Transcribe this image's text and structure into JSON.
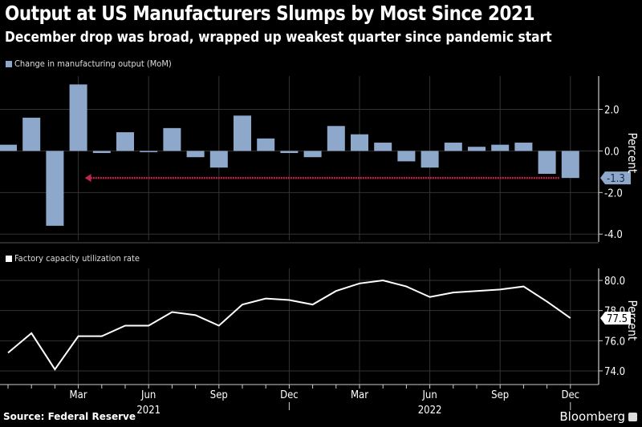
{
  "header": {
    "title": "Output at US Manufacturers Slumps by Most Since 2021",
    "subtitle": "December drop was broad, wrapped up weakest quarter since pandemic start"
  },
  "footer": {
    "source": "Source: Federal Reserve",
    "brand": "Bloomberg"
  },
  "colors": {
    "background": "#000000",
    "bar": "#8ea8cc",
    "line": "#ffffff",
    "arrow": "#c0264a",
    "grid": "#333333"
  },
  "chart_data": [
    {
      "type": "bar",
      "legend": "Change in manufacturing output (MoM)",
      "ylabel": "Percent",
      "ylim": [
        -4.3,
        3.6
      ],
      "yticks": [
        -4.0,
        -2.0,
        0.0,
        2.0
      ],
      "ytick_labels": [
        "-4.0",
        "-2.0",
        "0.0",
        "2.0"
      ],
      "grid": true,
      "categories": [
        "Dec 2020",
        "Jan 2021",
        "Feb 2021",
        "Mar 2021",
        "Apr 2021",
        "May 2021",
        "Jun 2021",
        "Jul 2021",
        "Aug 2021",
        "Sep 2021",
        "Oct 2021",
        "Nov 2021",
        "Dec 2021",
        "Jan 2022",
        "Feb 2022",
        "Mar 2022",
        "Apr 2022",
        "May 2022",
        "Jun 2022",
        "Jul 2022",
        "Aug 2022",
        "Sep 2022",
        "Oct 2022",
        "Nov 2022",
        "Dec 2022"
      ],
      "values": [
        0.3,
        1.6,
        -3.6,
        3.2,
        -0.1,
        0.9,
        -0.05,
        1.1,
        -0.3,
        -0.8,
        1.7,
        0.6,
        -0.1,
        -0.3,
        1.2,
        0.8,
        0.4,
        -0.5,
        -0.8,
        0.4,
        0.2,
        0.3,
        0.4,
        -1.1,
        -1.3
      ],
      "last_value_label": "-1.3",
      "annotation": {
        "type": "arrow",
        "from": "Dec 2022",
        "to": "Mar 2021",
        "level": -1.3
      }
    },
    {
      "type": "line",
      "legend": "Factory capacity utilization rate",
      "ylabel": "Percent",
      "ylim": [
        73.2,
        80.8
      ],
      "yticks": [
        74.0,
        76.0,
        78.0,
        80.0
      ],
      "ytick_labels": [
        "74.0",
        "76.0",
        "78.0",
        "80.0"
      ],
      "grid": true,
      "categories": [
        "Dec 2020",
        "Jan 2021",
        "Feb 2021",
        "Mar 2021",
        "Apr 2021",
        "May 2021",
        "Jun 2021",
        "Jul 2021",
        "Aug 2021",
        "Sep 2021",
        "Oct 2021",
        "Nov 2021",
        "Dec 2021",
        "Jan 2022",
        "Feb 2022",
        "Mar 2022",
        "Apr 2022",
        "May 2022",
        "Jun 2022",
        "Jul 2022",
        "Aug 2022",
        "Sep 2022",
        "Oct 2022",
        "Nov 2022",
        "Dec 2022"
      ],
      "values": [
        75.2,
        76.5,
        74.1,
        76.3,
        76.3,
        77.0,
        77.0,
        77.9,
        77.7,
        77.0,
        78.4,
        78.8,
        78.7,
        78.4,
        79.3,
        79.8,
        80.0,
        79.6,
        78.9,
        79.2,
        79.3,
        79.4,
        79.6,
        78.6,
        77.5
      ],
      "last_value_label": "77.5",
      "xtick_labels": [
        "Mar",
        "Jun",
        "Sep",
        "Dec",
        "Mar",
        "Jun",
        "Sep",
        "Dec"
      ],
      "xtick_positions": [
        "Mar 2021",
        "Jun 2021",
        "Sep 2021",
        "Dec 2021",
        "Mar 2022",
        "Jun 2022",
        "Sep 2022",
        "Dec 2022"
      ],
      "year_labels": [
        {
          "label": "2021",
          "at": "Jun 2021"
        },
        {
          "label": "2022",
          "at": "Jun 2022"
        }
      ]
    }
  ]
}
